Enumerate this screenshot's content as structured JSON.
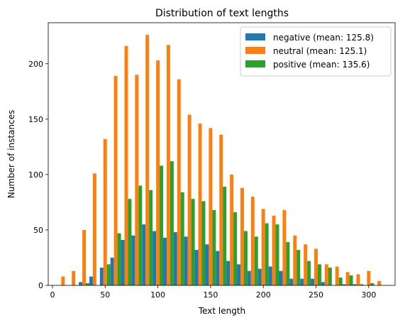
{
  "chart_data": {
    "type": "bar",
    "title": "Distribution of text lengths",
    "xlabel": "Text length",
    "ylabel": "Number of instances",
    "xlim": [
      -4,
      325
    ],
    "ylim": [
      0,
      237
    ],
    "x_ticks": [
      0,
      50,
      100,
      150,
      200,
      250,
      300
    ],
    "y_ticks": [
      0,
      50,
      100,
      150,
      200
    ],
    "grid": false,
    "legend_position": "top-right",
    "bin_start": 5,
    "bin_width": 10,
    "series": [
      {
        "name": "negative (mean: 125.8)",
        "color": "#1f77b4",
        "values": [
          0,
          0,
          3,
          8,
          16,
          25,
          41,
          45,
          55,
          49,
          43,
          48,
          44,
          32,
          37,
          31,
          22,
          19,
          13,
          15,
          17,
          13,
          6,
          6,
          6,
          3,
          0,
          1,
          1,
          0
        ]
      },
      {
        "name": "neutral (mean: 125.1)",
        "color": "#ff7f0e",
        "values": [
          8,
          13,
          50,
          101,
          132,
          189,
          216,
          190,
          226,
          203,
          217,
          186,
          154,
          146,
          142,
          136,
          100,
          88,
          80,
          69,
          63,
          68,
          45,
          37,
          33,
          19,
          17,
          12,
          10,
          13,
          4
        ]
      },
      {
        "name": "positive (mean: 135.6)",
        "color": "#2ca02c",
        "values": [
          0,
          0,
          2,
          0,
          19,
          47,
          78,
          90,
          86,
          108,
          112,
          84,
          78,
          76,
          68,
          89,
          66,
          49,
          44,
          56,
          55,
          39,
          32,
          22,
          19,
          16,
          7,
          9,
          1,
          2,
          0
        ]
      }
    ]
  }
}
